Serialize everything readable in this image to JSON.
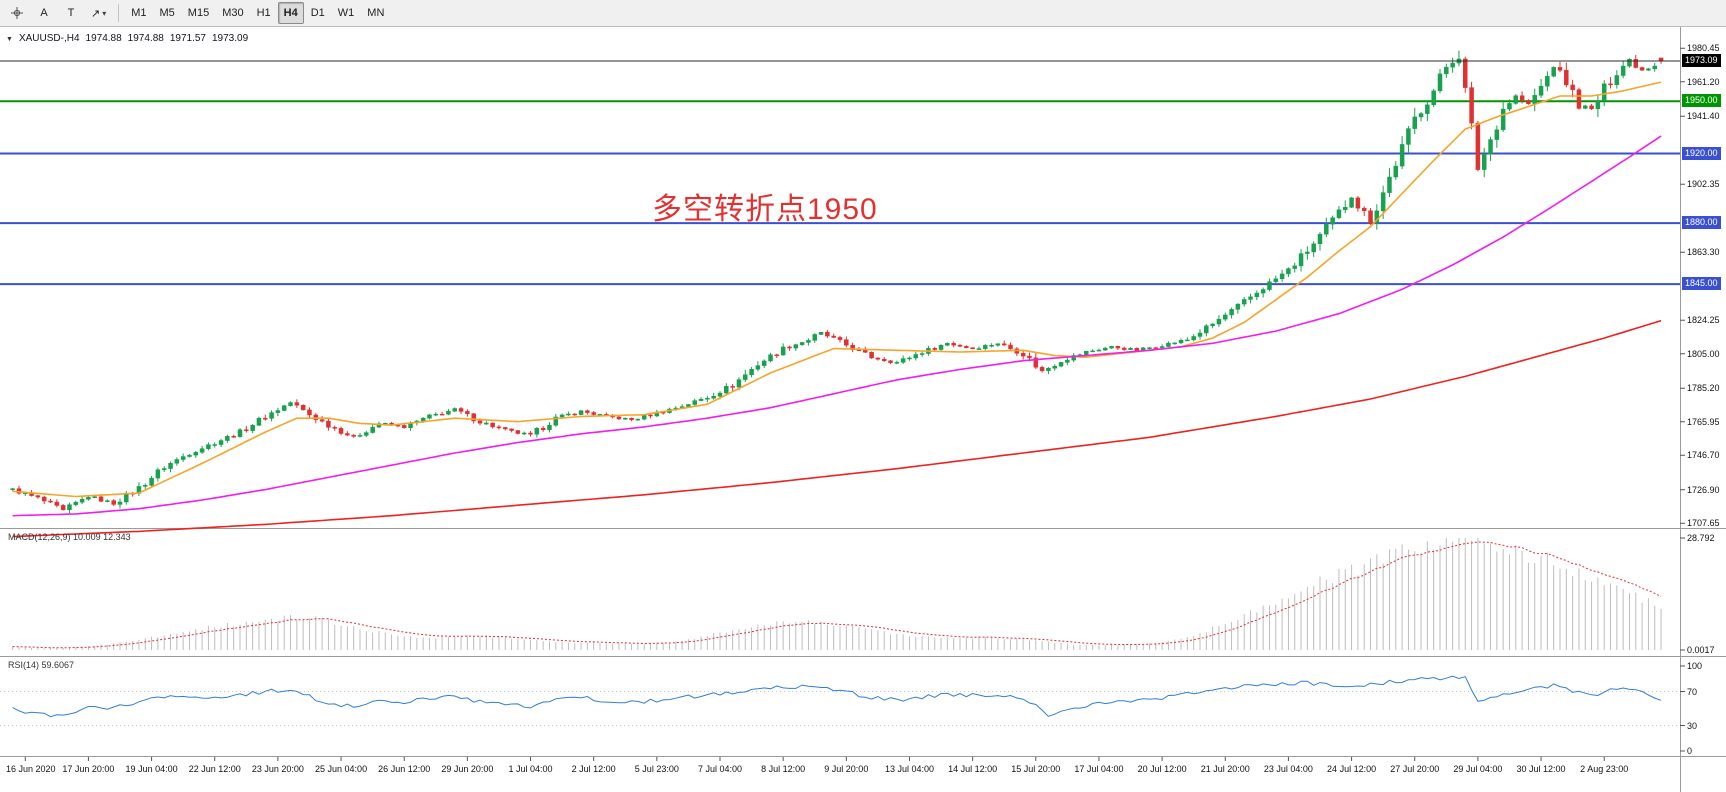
{
  "toolbar": {
    "tools": [
      {
        "name": "crosshair-tool"
      },
      {
        "name": "text-tool",
        "label": "A"
      },
      {
        "name": "label-tool",
        "label": "T"
      },
      {
        "name": "arrow-tool",
        "label": "↗",
        "caret": "▾"
      }
    ],
    "timeframes": [
      "M1",
      "M5",
      "M15",
      "M30",
      "H1",
      "H4",
      "D1",
      "W1",
      "MN"
    ],
    "active_timeframe": "H4"
  },
  "chart": {
    "collapse_arrow": "▼",
    "symbol_title": "XAUUSD-,H4",
    "open": "1974.88",
    "high": "1974.88",
    "low": "1971.57",
    "close": "1973.09",
    "annotation": {
      "text": "多空转折点1950",
      "color": "#e33030"
    }
  },
  "indicators": {
    "macd": {
      "label": "MACD(12,26,9)",
      "value_main": "10.009",
      "value_signal": "12.343"
    },
    "rsi": {
      "label": "RSI(14)",
      "value": "59.6067"
    }
  },
  "chart_data": {
    "type": "candlestick",
    "symbol": "XAUUSD-",
    "timeframe": "H4",
    "bars_count": 262,
    "y_axis": {
      "range": [
        1705.5,
        1991.5
      ],
      "ticks": [
        "1980.45",
        "1961.20",
        "1941.40",
        "1902.35",
        "1863.30",
        "1824.25",
        "1805.00",
        "1785.20",
        "1765.95",
        "1746.70",
        "1726.90",
        "1707.65"
      ],
      "highlights": [
        {
          "text": "1973.09",
          "price": 1973.09,
          "bg": "#000000",
          "role": "last-price"
        },
        {
          "text": "1950.00",
          "price": 1950.0,
          "bg": "#009600",
          "role": "hline"
        },
        {
          "text": "1920.00",
          "price": 1920.0,
          "bg": "#3a50d2",
          "role": "hline"
        },
        {
          "text": "1880.00",
          "price": 1880.0,
          "bg": "#3a50d2",
          "role": "hline"
        },
        {
          "text": "1845.00",
          "price": 1845.0,
          "bg": "#3a50d2",
          "role": "hline"
        }
      ]
    },
    "x_axis": {
      "first_bar_index": 2,
      "bar_step": 10,
      "labels": [
        "16 Jun 2020",
        "17 Jun 20:00",
        "19 Jun 04:00",
        "22 Jun 12:00",
        "23 Jun 20:00",
        "25 Jun 04:00",
        "26 Jun 12:00",
        "29 Jun 20:00",
        "1 Jul 04:00",
        "2 Jul 12:00",
        "5 Jul 23:00",
        "7 Jul 04:00",
        "8 Jul 12:00",
        "9 Jul 20:00",
        "13 Jul 04:00",
        "14 Jul 12:00",
        "15 Jul 20:00",
        "17 Jul 04:00",
        "20 Jul 12:00",
        "21 Jul 20:00",
        "23 Jul 04:00",
        "24 Jul 12:00",
        "27 Jul 20:00",
        "29 Jul 04:00",
        "30 Jul 12:00",
        "2 Aug 23:00"
      ]
    },
    "hlines": [
      {
        "price": 1950.0,
        "color": "#009600",
        "width": 2
      },
      {
        "price": 1920.0,
        "color": "#3a50d2",
        "width": 2
      },
      {
        "price": 1880.0,
        "color": "#3a50d2",
        "width": 2
      },
      {
        "price": 1845.0,
        "color": "#3a50d2",
        "width": 2
      }
    ],
    "last_price_line": {
      "price": 1973.09,
      "color": "#2b2b2b"
    },
    "candle_colors": {
      "up": "#18a14e",
      "down": "#e03131"
    },
    "last_candle": {
      "open": 1974.88,
      "high": 1974.88,
      "low": 1971.57,
      "close": 1973.09
    },
    "price_path": [
      [
        0,
        1727
      ],
      [
        4,
        1722
      ],
      [
        8,
        1715
      ],
      [
        12,
        1723
      ],
      [
        16,
        1719
      ],
      [
        20,
        1728
      ],
      [
        24,
        1740
      ],
      [
        28,
        1748
      ],
      [
        32,
        1754
      ],
      [
        36,
        1760
      ],
      [
        40,
        1769
      ],
      [
        44,
        1777
      ],
      [
        47,
        1770
      ],
      [
        50,
        1764
      ],
      [
        54,
        1757
      ],
      [
        58,
        1765
      ],
      [
        62,
        1763
      ],
      [
        66,
        1769
      ],
      [
        70,
        1773
      ],
      [
        74,
        1766
      ],
      [
        78,
        1761
      ],
      [
        82,
        1758
      ],
      [
        86,
        1768
      ],
      [
        90,
        1772
      ],
      [
        94,
        1769
      ],
      [
        98,
        1767
      ],
      [
        102,
        1771
      ],
      [
        106,
        1775
      ],
      [
        110,
        1780
      ],
      [
        114,
        1787
      ],
      [
        118,
        1799
      ],
      [
        122,
        1808
      ],
      [
        126,
        1813
      ],
      [
        128,
        1817
      ],
      [
        132,
        1810
      ],
      [
        136,
        1803
      ],
      [
        140,
        1800
      ],
      [
        144,
        1806
      ],
      [
        148,
        1811
      ],
      [
        152,
        1808
      ],
      [
        156,
        1811
      ],
      [
        160,
        1805
      ],
      [
        163,
        1795
      ],
      [
        166,
        1801
      ],
      [
        170,
        1806
      ],
      [
        174,
        1809
      ],
      [
        178,
        1807
      ],
      [
        182,
        1810
      ],
      [
        186,
        1813
      ],
      [
        190,
        1822
      ],
      [
        194,
        1832
      ],
      [
        198,
        1843
      ],
      [
        202,
        1853
      ],
      [
        206,
        1868
      ],
      [
        210,
        1886
      ],
      [
        212,
        1895
      ],
      [
        215,
        1881
      ],
      [
        218,
        1906
      ],
      [
        222,
        1940
      ],
      [
        225,
        1956
      ],
      [
        227,
        1970
      ],
      [
        229,
        1977
      ],
      [
        231,
        1935
      ],
      [
        232,
        1912
      ],
      [
        234,
        1928
      ],
      [
        236,
        1946
      ],
      [
        238,
        1953
      ],
      [
        240,
        1948
      ],
      [
        242,
        1958
      ],
      [
        244,
        1970
      ],
      [
        246,
        1961
      ],
      [
        248,
        1948
      ],
      [
        250,
        1945
      ],
      [
        252,
        1957
      ],
      [
        254,
        1967
      ],
      [
        256,
        1974
      ],
      [
        258,
        1968
      ],
      [
        260,
        1971
      ],
      [
        261,
        1973.09
      ]
    ],
    "moving_averages": [
      {
        "name": "ma-fast-orange",
        "color": "#f7a428",
        "points": [
          [
            0,
            1726
          ],
          [
            10,
            1723
          ],
          [
            20,
            1725
          ],
          [
            30,
            1742
          ],
          [
            40,
            1760
          ],
          [
            45,
            1768
          ],
          [
            50,
            1768
          ],
          [
            55,
            1765
          ],
          [
            60,
            1764
          ],
          [
            70,
            1768
          ],
          [
            80,
            1766
          ],
          [
            90,
            1769
          ],
          [
            100,
            1770
          ],
          [
            110,
            1776
          ],
          [
            120,
            1794
          ],
          [
            130,
            1808
          ],
          [
            140,
            1807
          ],
          [
            150,
            1806
          ],
          [
            160,
            1807
          ],
          [
            165,
            1804
          ],
          [
            170,
            1803
          ],
          [
            180,
            1807
          ],
          [
            185,
            1809
          ],
          [
            190,
            1814
          ],
          [
            195,
            1823
          ],
          [
            200,
            1836
          ],
          [
            205,
            1849
          ],
          [
            210,
            1864
          ],
          [
            215,
            1878
          ],
          [
            220,
            1897
          ],
          [
            225,
            1916
          ],
          [
            230,
            1934
          ],
          [
            235,
            1941
          ],
          [
            240,
            1947
          ],
          [
            245,
            1953
          ],
          [
            250,
            1953
          ],
          [
            255,
            1956
          ],
          [
            261,
            1961
          ]
        ]
      },
      {
        "name": "ma-mid-magenta",
        "color": "#f01ef0",
        "points": [
          [
            0,
            1712
          ],
          [
            10,
            1713
          ],
          [
            20,
            1716
          ],
          [
            30,
            1721
          ],
          [
            40,
            1727
          ],
          [
            50,
            1734
          ],
          [
            60,
            1741
          ],
          [
            70,
            1748
          ],
          [
            80,
            1754
          ],
          [
            90,
            1759
          ],
          [
            100,
            1763
          ],
          [
            110,
            1768
          ],
          [
            120,
            1774
          ],
          [
            130,
            1782
          ],
          [
            140,
            1790
          ],
          [
            150,
            1796
          ],
          [
            160,
            1801
          ],
          [
            170,
            1804
          ],
          [
            180,
            1807
          ],
          [
            190,
            1811
          ],
          [
            200,
            1818
          ],
          [
            210,
            1828
          ],
          [
            220,
            1842
          ],
          [
            228,
            1856
          ],
          [
            236,
            1872
          ],
          [
            244,
            1890
          ],
          [
            250,
            1904
          ],
          [
            256,
            1918
          ],
          [
            261,
            1930
          ]
        ]
      },
      {
        "name": "ma-slow-red",
        "color": "#ee2222",
        "points": [
          [
            0,
            1700
          ],
          [
            20,
            1703
          ],
          [
            40,
            1707
          ],
          [
            60,
            1712
          ],
          [
            80,
            1718
          ],
          [
            100,
            1724
          ],
          [
            120,
            1731
          ],
          [
            140,
            1739
          ],
          [
            160,
            1748
          ],
          [
            180,
            1757
          ],
          [
            200,
            1769
          ],
          [
            215,
            1779
          ],
          [
            230,
            1792
          ],
          [
            242,
            1804
          ],
          [
            252,
            1814
          ],
          [
            261,
            1824
          ]
        ]
      }
    ],
    "macd": {
      "axis_max_label": "28.792",
      "axis_zero_label": "0.0017",
      "histogram_color": "#bdbdbd",
      "signal_color": "#e03030",
      "points": [
        [
          0,
          0.8
        ],
        [
          5,
          0.4
        ],
        [
          10,
          0.7
        ],
        [
          15,
          1.4
        ],
        [
          20,
          2.6
        ],
        [
          25,
          4.2
        ],
        [
          30,
          5.6
        ],
        [
          35,
          6.6
        ],
        [
          40,
          7.6
        ],
        [
          44,
          8.4
        ],
        [
          48,
          8.0
        ],
        [
          52,
          6.6
        ],
        [
          56,
          5.2
        ],
        [
          60,
          4.0
        ],
        [
          64,
          3.2
        ],
        [
          68,
          3.3
        ],
        [
          72,
          3.6
        ],
        [
          76,
          3.3
        ],
        [
          80,
          2.9
        ],
        [
          84,
          2.3
        ],
        [
          88,
          2.0
        ],
        [
          92,
          1.9
        ],
        [
          96,
          1.7
        ],
        [
          100,
          1.6
        ],
        [
          104,
          2.0
        ],
        [
          108,
          3.0
        ],
        [
          112,
          4.4
        ],
        [
          116,
          5.8
        ],
        [
          120,
          6.8
        ],
        [
          124,
          7.3
        ],
        [
          128,
          7.1
        ],
        [
          132,
          6.3
        ],
        [
          136,
          5.2
        ],
        [
          140,
          4.1
        ],
        [
          144,
          3.3
        ],
        [
          148,
          3.1
        ],
        [
          152,
          3.2
        ],
        [
          156,
          3.1
        ],
        [
          160,
          2.7
        ],
        [
          164,
          2.0
        ],
        [
          168,
          1.5
        ],
        [
          172,
          1.2
        ],
        [
          176,
          1.3
        ],
        [
          180,
          1.6
        ],
        [
          184,
          2.6
        ],
        [
          188,
          4.4
        ],
        [
          192,
          6.8
        ],
        [
          196,
          9.6
        ],
        [
          200,
          12.6
        ],
        [
          204,
          15.4
        ],
        [
          208,
          18.0
        ],
        [
          212,
          20.2
        ],
        [
          216,
          22.6
        ],
        [
          220,
          25.0
        ],
        [
          224,
          27.2
        ],
        [
          228,
          28.8
        ],
        [
          232,
          28.3
        ],
        [
          236,
          26.8
        ],
        [
          240,
          24.6
        ],
        [
          244,
          22.4
        ],
        [
          248,
          20.0
        ],
        [
          252,
          17.4
        ],
        [
          256,
          14.6
        ],
        [
          260,
          11.8
        ],
        [
          261,
          10.0
        ]
      ]
    },
    "rsi": {
      "color": "#2f7ed8",
      "levels": [
        "100",
        "70",
        "30",
        "0"
      ],
      "current": 59.6067,
      "points": [
        [
          0,
          50
        ],
        [
          4,
          43
        ],
        [
          8,
          40
        ],
        [
          12,
          52
        ],
        [
          16,
          50
        ],
        [
          20,
          58
        ],
        [
          24,
          63
        ],
        [
          28,
          62
        ],
        [
          32,
          64
        ],
        [
          36,
          66
        ],
        [
          40,
          70
        ],
        [
          44,
          72
        ],
        [
          47,
          64
        ],
        [
          50,
          57
        ],
        [
          54,
          52
        ],
        [
          58,
          60
        ],
        [
          62,
          58
        ],
        [
          66,
          62
        ],
        [
          70,
          65
        ],
        [
          74,
          58
        ],
        [
          78,
          54
        ],
        [
          82,
          52
        ],
        [
          86,
          60
        ],
        [
          90,
          63
        ],
        [
          94,
          59
        ],
        [
          98,
          57
        ],
        [
          102,
          60
        ],
        [
          106,
          63
        ],
        [
          110,
          66
        ],
        [
          114,
          69
        ],
        [
          118,
          73
        ],
        [
          122,
          75
        ],
        [
          126,
          76
        ],
        [
          130,
          72
        ],
        [
          134,
          66
        ],
        [
          138,
          61
        ],
        [
          142,
          60
        ],
        [
          146,
          65
        ],
        [
          150,
          67
        ],
        [
          154,
          64
        ],
        [
          158,
          63
        ],
        [
          162,
          57
        ],
        [
          164,
          42
        ],
        [
          168,
          51
        ],
        [
          172,
          56
        ],
        [
          176,
          58
        ],
        [
          180,
          60
        ],
        [
          184,
          64
        ],
        [
          188,
          70
        ],
        [
          192,
          74
        ],
        [
          196,
          77
        ],
        [
          200,
          78
        ],
        [
          204,
          80
        ],
        [
          208,
          79
        ],
        [
          212,
          76
        ],
        [
          216,
          80
        ],
        [
          220,
          82
        ],
        [
          224,
          85
        ],
        [
          228,
          87
        ],
        [
          230,
          88
        ],
        [
          232,
          58
        ],
        [
          235,
          65
        ],
        [
          238,
          70
        ],
        [
          241,
          73
        ],
        [
          244,
          78
        ],
        [
          247,
          70
        ],
        [
          250,
          64
        ],
        [
          252,
          70
        ],
        [
          255,
          74
        ],
        [
          258,
          68
        ],
        [
          261,
          59.6
        ]
      ]
    }
  }
}
